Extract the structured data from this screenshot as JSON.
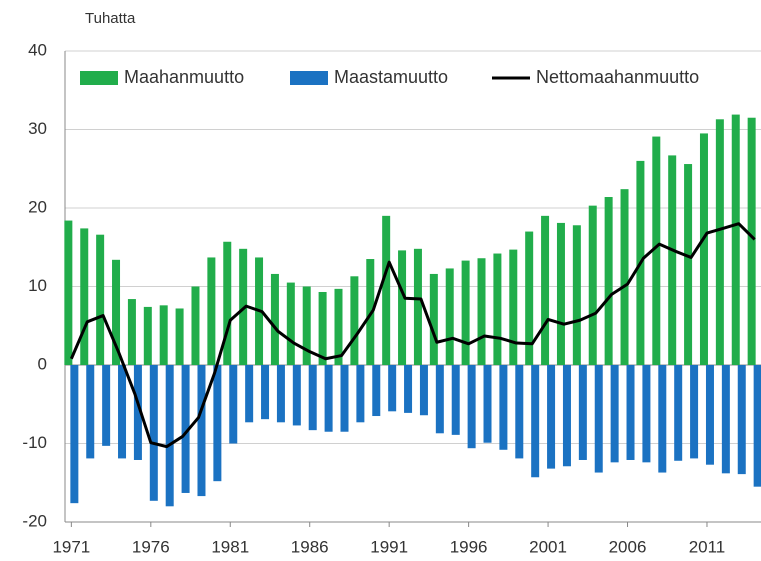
{
  "chart_data": {
    "type": "bar_line",
    "y_label": "Tuhatta",
    "x": [
      1971,
      1972,
      1973,
      1974,
      1975,
      1976,
      1977,
      1978,
      1979,
      1980,
      1981,
      1982,
      1983,
      1984,
      1985,
      1986,
      1987,
      1988,
      1989,
      1990,
      1991,
      1992,
      1993,
      1994,
      1995,
      1996,
      1997,
      1998,
      1999,
      2000,
      2001,
      2002,
      2003,
      2004,
      2005,
      2006,
      2007,
      2008,
      2009,
      2010,
      2011,
      2012,
      2013,
      2014
    ],
    "series": [
      {
        "name": "Maahanmuutto",
        "color": "#21ad4b",
        "kind": "bar",
        "values": [
          18.4,
          17.4,
          16.6,
          13.4,
          8.4,
          7.4,
          7.6,
          7.2,
          10.0,
          13.7,
          15.7,
          14.8,
          13.7,
          11.6,
          10.5,
          10.0,
          9.3,
          9.7,
          11.3,
          13.5,
          19.0,
          14.6,
          14.8,
          11.6,
          12.3,
          13.3,
          13.6,
          14.2,
          14.7,
          17.0,
          19.0,
          18.1,
          17.8,
          20.3,
          21.4,
          22.4,
          26.0,
          29.1,
          26.7,
          25.6,
          29.5,
          31.3,
          31.9,
          31.5
        ]
      },
      {
        "name": "Maastamuutto",
        "color": "#1b72c2",
        "kind": "bar",
        "values": [
          -17.6,
          -11.9,
          -10.3,
          -11.9,
          -12.1,
          -17.3,
          -18.0,
          -16.3,
          -16.7,
          -14.8,
          -10.0,
          -7.3,
          -6.9,
          -7.3,
          -7.7,
          -8.3,
          -8.5,
          -8.5,
          -7.3,
          -6.5,
          -5.9,
          -6.1,
          -6.4,
          -8.7,
          -8.9,
          -10.6,
          -9.9,
          -10.8,
          -11.9,
          -14.3,
          -13.2,
          -12.9,
          -12.1,
          -13.7,
          -12.4,
          -12.1,
          -12.4,
          -13.7,
          -12.2,
          -11.9,
          -12.7,
          -13.8,
          -13.9,
          -15.5
        ]
      },
      {
        "name": "Nettomaahanmuutto",
        "color": "#000000",
        "kind": "line",
        "values": [
          0.8,
          5.5,
          6.3,
          1.5,
          -3.7,
          -9.9,
          -10.4,
          -9.1,
          -6.7,
          -1.1,
          5.7,
          7.5,
          6.8,
          4.3,
          2.8,
          1.7,
          0.8,
          1.2,
          4.0,
          7.0,
          13.1,
          8.5,
          8.4,
          2.9,
          3.4,
          2.7,
          3.7,
          3.4,
          2.8,
          2.7,
          5.8,
          5.2,
          5.7,
          6.6,
          9.0,
          10.3,
          13.6,
          15.4,
          14.5,
          13.7,
          16.8,
          17.4,
          18.0,
          16.0
        ]
      }
    ],
    "xlim": [
      1970.6,
      2014.4
    ],
    "xticks": [
      1971,
      1976,
      1981,
      1986,
      1991,
      1996,
      2001,
      2006,
      2011
    ],
    "ylim": [
      -20,
      40
    ],
    "yticks": [
      -20,
      -10,
      0,
      10,
      20,
      30,
      40
    ],
    "grid": true,
    "legend": "top"
  }
}
